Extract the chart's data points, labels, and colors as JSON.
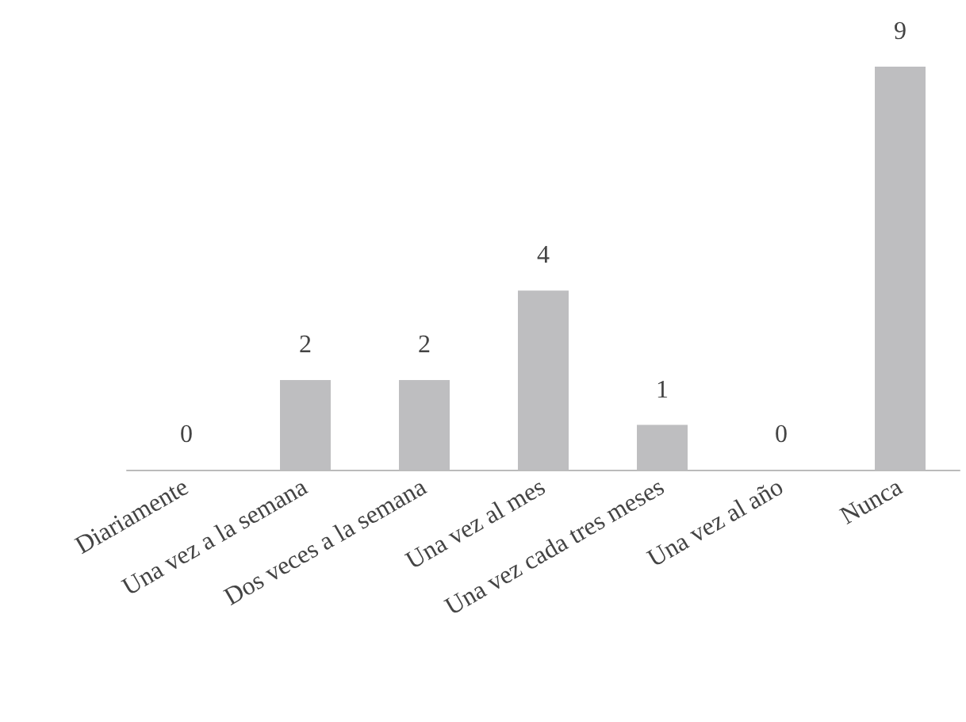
{
  "chart_data": {
    "type": "bar",
    "categories": [
      "Diariamente",
      "Una vez a la semana",
      "Dos veces a la semana",
      "Una vez al mes",
      "Una vez cada tres meses",
      "Una vez al año",
      "Nunca"
    ],
    "values": [
      0,
      2,
      2,
      4,
      1,
      0,
      9
    ],
    "color": "#bebec0",
    "data_labels": true
  }
}
